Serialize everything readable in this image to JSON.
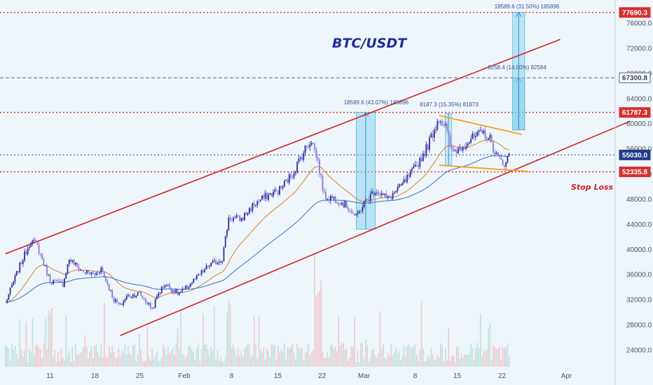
{
  "chart_data": {
    "type": "candlestick",
    "title": "BTC/USDT",
    "y_axis_ticks": [
      24000,
      28000,
      32000,
      36000,
      40000,
      44000,
      48000,
      52000,
      56000,
      60000,
      64000,
      68000,
      72000,
      76000
    ],
    "y_axis_tick_labels": [
      "24000.0",
      "28000.0",
      "32000.0",
      "36000.0",
      "40000.0",
      "44000.0",
      "48000.0",
      "52000.0",
      "56000.0",
      "60000.0",
      "64000.0",
      "68000.0",
      "72000.0",
      "76000.0"
    ],
    "y_range": [
      22000,
      78500
    ],
    "x_axis_ticks": [
      "11",
      "18",
      "25",
      "Feb",
      "8",
      "15",
      "22",
      "Mar",
      "8",
      "15",
      "22",
      "Apr"
    ],
    "horizontal_levels": [
      {
        "value": 77690.3,
        "label": "77690.3",
        "color": "#d63030",
        "style": "dotted"
      },
      {
        "value": 67300.8,
        "label": "67300.8",
        "color": "#5c6470",
        "style": "dashed"
      },
      {
        "value": 61787.3,
        "label": "61787.3",
        "color": "#d63030",
        "style": "dotted"
      },
      {
        "value": 55030.0,
        "label": "55030.0",
        "color": "#2a3f9a",
        "style": "dotted"
      },
      {
        "value": 52335.8,
        "label": "52335.8",
        "color": "#d63030",
        "style": "dotted"
      }
    ],
    "channel": {
      "color": "#d32f2f",
      "upper": [
        [
          "Jan 4",
          39300
        ],
        [
          "Apr 1",
          73400
        ]
      ],
      "lower": [
        [
          "Jan 22",
          26300
        ],
        [
          "Apr 12",
          60400
        ]
      ]
    },
    "wedge": {
      "color": "#f6a21f",
      "upper": [
        [
          "Mar 13",
          61300
        ],
        [
          "Mar 26",
          58300
        ]
      ],
      "lower": [
        [
          "Mar 13",
          53400
        ],
        [
          "Mar 27",
          52400
        ]
      ]
    },
    "measure_annotations": [
      {
        "text": "18589.6 (43.07%) 185896",
        "from": 43200,
        "to": 61800
      },
      {
        "text": "8187.3 (15.35%) 81873",
        "from": 53400,
        "to": 61600
      },
      {
        "text": "8258.4 (14.00%) 82584",
        "from": 59000,
        "to": 67300
      },
      {
        "text": "18589.6 (31.50%) 185896",
        "from": 59000,
        "to": 77690
      }
    ],
    "close_series_approx": [
      [
        "Jan 4",
        31500
      ],
      [
        "Jan 6",
        36800
      ],
      [
        "Jan 8",
        41500
      ],
      [
        "Jan 9",
        40500
      ],
      [
        "Jan 11",
        35000
      ],
      [
        "Jan 13",
        34500
      ],
      [
        "Jan 14",
        38500
      ],
      [
        "Jan 16",
        36500
      ],
      [
        "Jan 18",
        36000
      ],
      [
        "Jan 19",
        37000
      ],
      [
        "Jan 21",
        32000
      ],
      [
        "Jan 22",
        31000
      ],
      [
        "Jan 23",
        32500
      ],
      [
        "Jan 25",
        33000
      ],
      [
        "Jan 27",
        30500
      ],
      [
        "Jan 28",
        33000
      ],
      [
        "Jan 29",
        34500
      ],
      [
        "Jan 31",
        33000
      ],
      [
        "Feb 1",
        33500
      ],
      [
        "Feb 3",
        35500
      ],
      [
        "Feb 5",
        37500
      ],
      [
        "Feb 7",
        38500
      ],
      [
        "Feb 8",
        45000
      ],
      [
        "Feb 10",
        44800
      ],
      [
        "Feb 12",
        47200
      ],
      [
        "Feb 14",
        48500
      ],
      [
        "Feb 16",
        49500
      ],
      [
        "Feb 18",
        52000
      ],
      [
        "Feb 20",
        56000
      ],
      [
        "Feb 21",
        57500
      ],
      [
        "Feb 22",
        54000
      ],
      [
        "Feb 23",
        48500
      ],
      [
        "Feb 25",
        48000
      ],
      [
        "Feb 27",
        46500
      ],
      [
        "Feb 28",
        45000
      ],
      [
        "Mar 1",
        47000
      ],
      [
        "Mar 3",
        49500
      ],
      [
        "Mar 5",
        48000
      ],
      [
        "Mar 7",
        50000
      ],
      [
        "Mar 9",
        52500
      ],
      [
        "Mar 11",
        56000
      ],
      [
        "Mar 13",
        61000
      ],
      [
        "Mar 14",
        59500
      ],
      [
        "Mar 15",
        55500
      ],
      [
        "Mar 16",
        56000
      ],
      [
        "Mar 18",
        57500
      ],
      [
        "Mar 20",
        58500
      ],
      [
        "Mar 21",
        57500
      ],
      [
        "Mar 22",
        55000
      ],
      [
        "Mar 23",
        53500
      ],
      [
        "Mar 24",
        55030
      ]
    ]
  }
}
